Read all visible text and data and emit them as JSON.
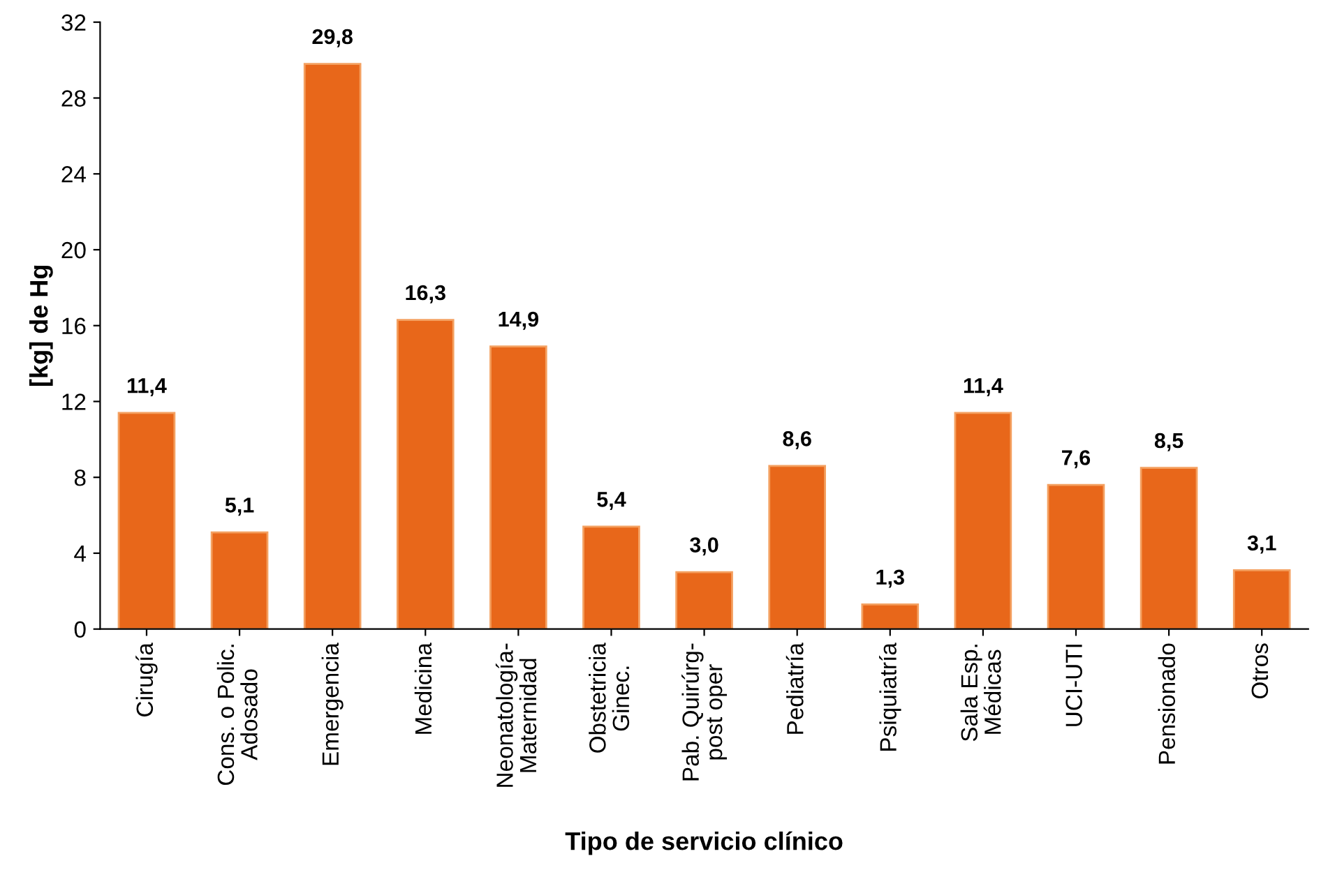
{
  "chart_data": {
    "type": "bar",
    "xlabel": "Tipo de servicio clínico",
    "ylabel": "[kg] de Hg",
    "categories": [
      "Cirugía",
      "Cons. o Polic.\nAdosado",
      "Emergencia",
      "Medicina",
      "Neonatología-\nMaternidad",
      "Obstetricia\nGinec.",
      "Pab. Quirúrg-\npost oper",
      "Pediatría",
      "Psiquiatría",
      "Sala Esp.\nMédicas",
      "UCI-UTI",
      "Pensionado",
      "Otros"
    ],
    "values": [
      11.4,
      5.1,
      29.8,
      16.3,
      14.9,
      5.4,
      3.0,
      8.6,
      1.3,
      11.4,
      7.6,
      8.5,
      3.1
    ],
    "value_labels": [
      "11,4",
      "5,1",
      "29,8",
      "16,3",
      "14,9",
      "5,4",
      "3,0",
      "8,6",
      "1,3",
      "11,4",
      "7,6",
      "8,5",
      "3,1"
    ],
    "color": "#e8671a",
    "ylim": [
      0,
      32
    ],
    "yticks": [
      0,
      4,
      8,
      12,
      16,
      20,
      24,
      28,
      32
    ],
    "grid": false,
    "legend": false
  }
}
